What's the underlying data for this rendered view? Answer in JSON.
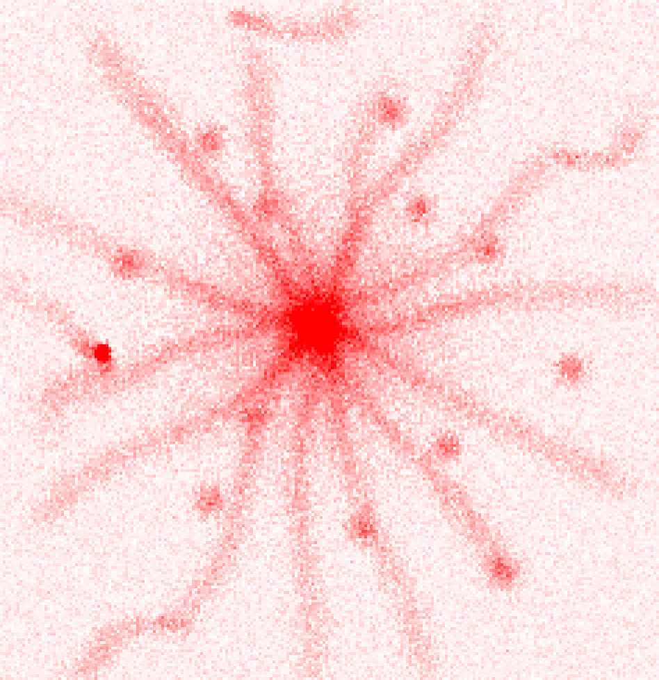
{
  "image": {
    "subject": "cosmic-web-density-map",
    "colors": {
      "background": "#ffffff",
      "density": "#ff0000"
    }
  }
}
